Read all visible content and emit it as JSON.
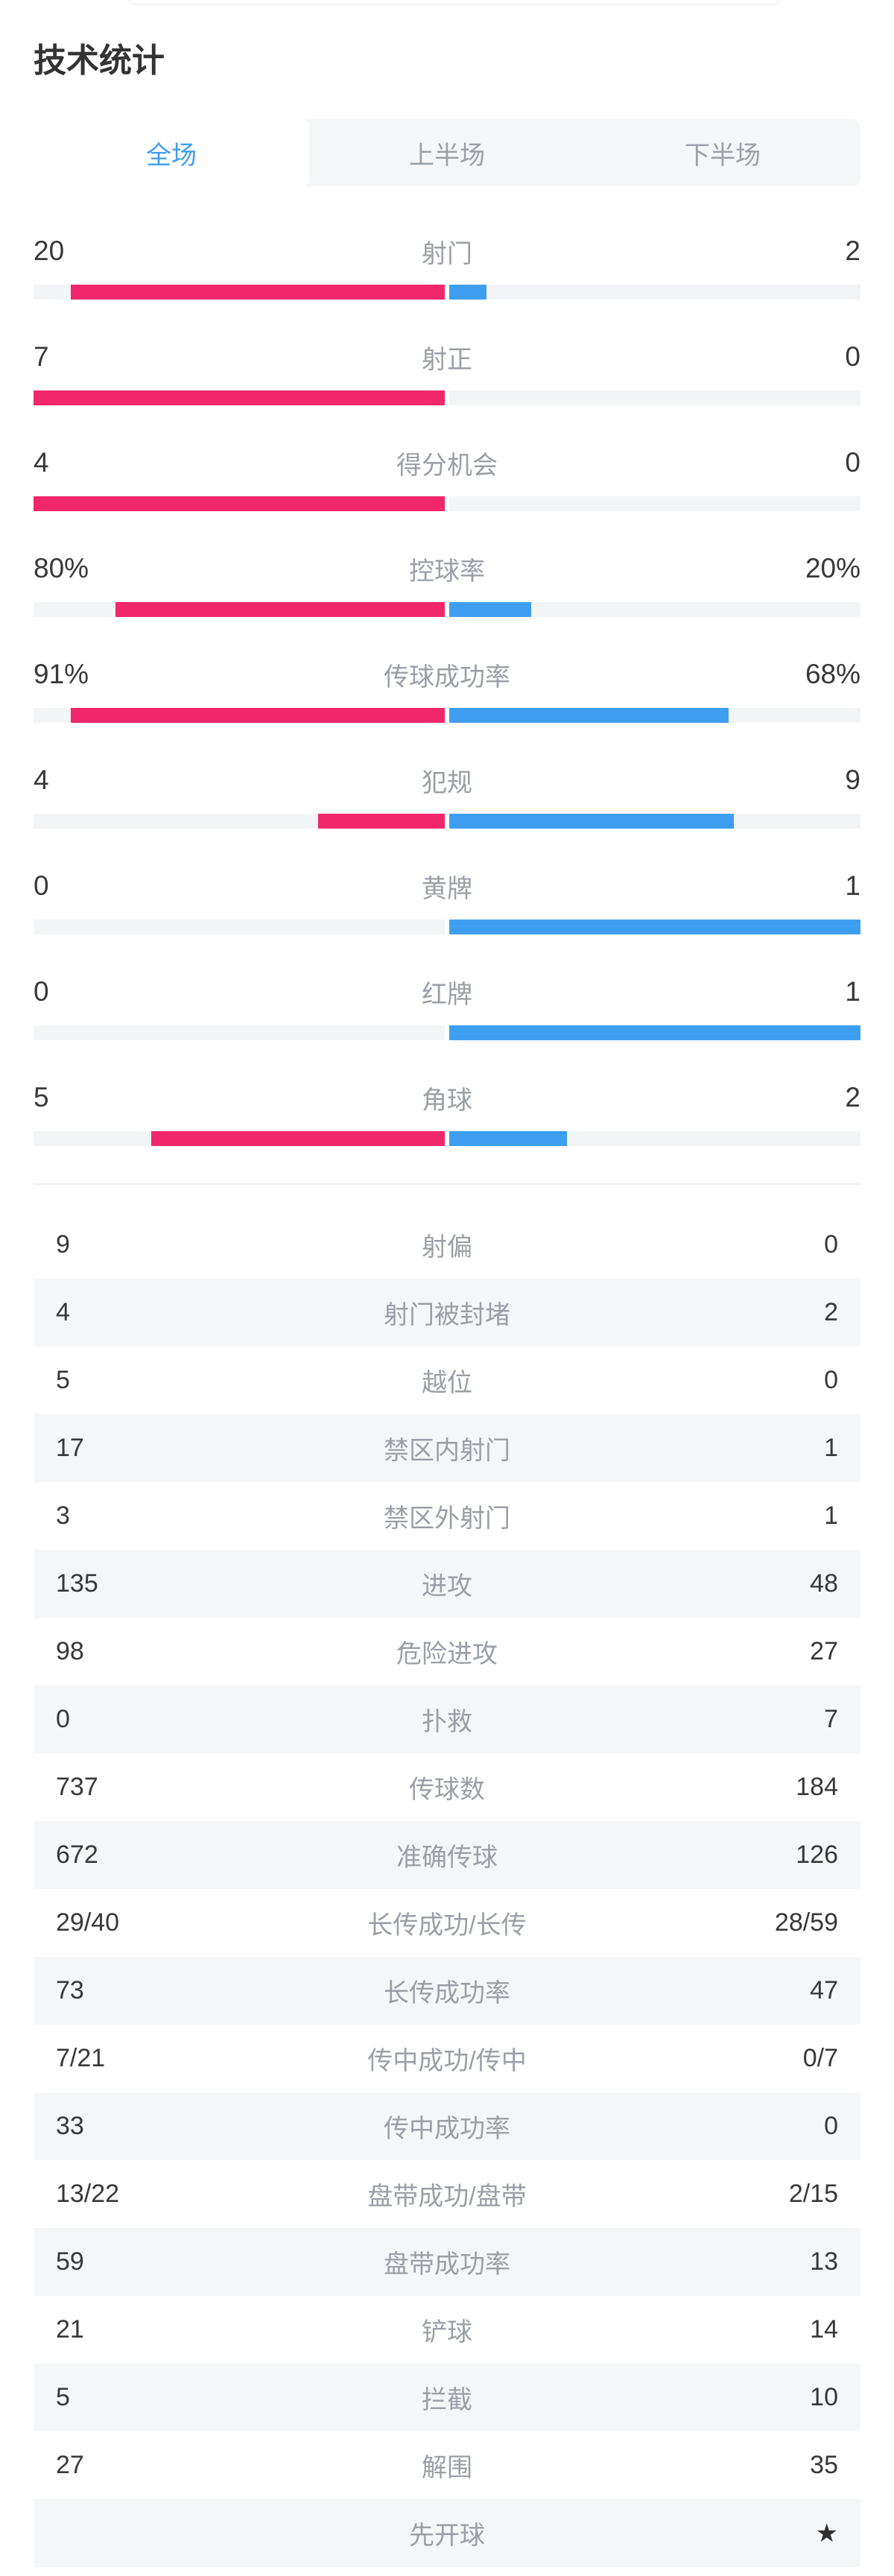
{
  "page": {
    "title": "技术统计"
  },
  "tabs": [
    {
      "label": "全场",
      "active": true
    },
    {
      "label": "上半场",
      "active": false
    },
    {
      "label": "下半场",
      "active": false
    }
  ],
  "colors": {
    "home": "#f1276c",
    "away": "#3d9ef0",
    "track": "#f3f4f6",
    "row_alt": "#f5f6f8",
    "tab_active_text": "#3d9ef0",
    "number_text": "#383838",
    "label_text": "#9a9ea6"
  },
  "icons": {
    "kickoff_star": "★"
  },
  "chart_data": {
    "type": "bar",
    "title": "技术统计",
    "legend_position": "none",
    "orientation": "horizontal-paired",
    "note": "left/home bars pink extend leftward from center; right/away bars blue extend rightward; width = value/sum, or value/100 when percent",
    "bar_rows": [
      {
        "label": "射门",
        "home": 20,
        "away": 2,
        "home_display": "20",
        "away_display": "2",
        "percent": false
      },
      {
        "label": "射正",
        "home": 7,
        "away": 0,
        "home_display": "7",
        "away_display": "0",
        "percent": false
      },
      {
        "label": "得分机会",
        "home": 4,
        "away": 0,
        "home_display": "4",
        "away_display": "0",
        "percent": false
      },
      {
        "label": "控球率",
        "home": 80,
        "away": 20,
        "home_display": "80%",
        "away_display": "20%",
        "percent": true
      },
      {
        "label": "传球成功率",
        "home": 91,
        "away": 68,
        "home_display": "91%",
        "away_display": "68%",
        "percent": true
      },
      {
        "label": "犯规",
        "home": 4,
        "away": 9,
        "home_display": "4",
        "away_display": "9",
        "percent": false
      },
      {
        "label": "黄牌",
        "home": 0,
        "away": 1,
        "home_display": "0",
        "away_display": "1",
        "percent": false
      },
      {
        "label": "红牌",
        "home": 0,
        "away": 1,
        "home_display": "0",
        "away_display": "1",
        "percent": false
      },
      {
        "label": "角球",
        "home": 5,
        "away": 2,
        "home_display": "5",
        "away_display": "2",
        "percent": false
      }
    ],
    "list_rows": [
      {
        "label": "射偏",
        "home": "9",
        "away": "0",
        "star": false
      },
      {
        "label": "射门被封堵",
        "home": "4",
        "away": "2",
        "star": false
      },
      {
        "label": "越位",
        "home": "5",
        "away": "0",
        "star": false
      },
      {
        "label": "禁区内射门",
        "home": "17",
        "away": "1",
        "star": false
      },
      {
        "label": "禁区外射门",
        "home": "3",
        "away": "1",
        "star": false
      },
      {
        "label": "进攻",
        "home": "135",
        "away": "48",
        "star": false
      },
      {
        "label": "危险进攻",
        "home": "98",
        "away": "27",
        "star": false
      },
      {
        "label": "扑救",
        "home": "0",
        "away": "7",
        "star": false
      },
      {
        "label": "传球数",
        "home": "737",
        "away": "184",
        "star": false
      },
      {
        "label": "准确传球",
        "home": "672",
        "away": "126",
        "star": false
      },
      {
        "label": "长传成功/长传",
        "home": "29/40",
        "away": "28/59",
        "star": false
      },
      {
        "label": "长传成功率",
        "home": "73",
        "away": "47",
        "star": false
      },
      {
        "label": "传中成功/传中",
        "home": "7/21",
        "away": "0/7",
        "star": false
      },
      {
        "label": "传中成功率",
        "home": "33",
        "away": "0",
        "star": false
      },
      {
        "label": "盘带成功/盘带",
        "home": "13/22",
        "away": "2/15",
        "star": false
      },
      {
        "label": "盘带成功率",
        "home": "59",
        "away": "13",
        "star": false
      },
      {
        "label": "铲球",
        "home": "21",
        "away": "14",
        "star": false
      },
      {
        "label": "拦截",
        "home": "5",
        "away": "10",
        "star": false
      },
      {
        "label": "解围",
        "home": "27",
        "away": "35",
        "star": false
      },
      {
        "label": "先开球",
        "home": "",
        "away": "★",
        "star": true
      }
    ]
  }
}
